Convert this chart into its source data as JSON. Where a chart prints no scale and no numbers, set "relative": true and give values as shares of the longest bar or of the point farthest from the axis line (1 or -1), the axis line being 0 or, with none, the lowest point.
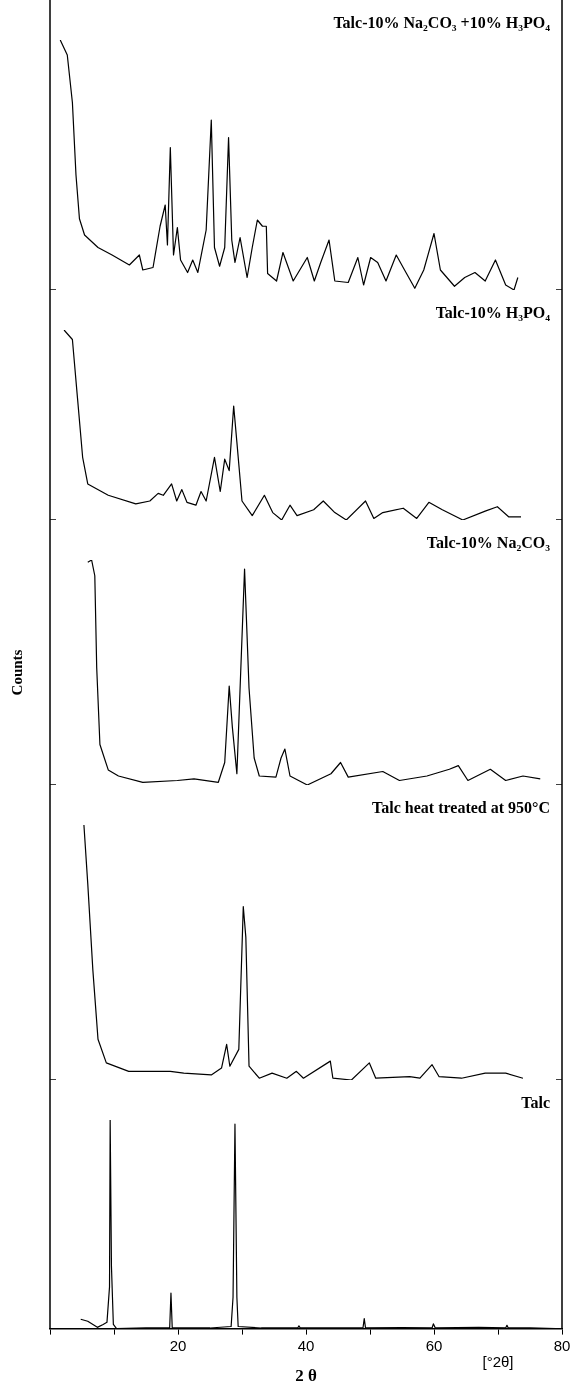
{
  "chart_data": [
    {
      "type": "line",
      "title": "Talc-10% Na₂CO₃ +10% H₃PO₄",
      "relative": true,
      "color": "#000000",
      "xlim": [
        0,
        80
      ],
      "tick_labels": false,
      "x": [
        1.6,
        2.7,
        3.5,
        4.06,
        4.6,
        5.4,
        7.5,
        9.7,
        12.4,
        13.96,
        14.5,
        16.1,
        17.2,
        18.0,
        18.35,
        18.8,
        19.3,
        19.9,
        20.4,
        21.5,
        22.3,
        23.1,
        24.4,
        25.2,
        25.7,
        26.5,
        27.3,
        27.9,
        28.4,
        28.9,
        29.7,
        30.8,
        31.6,
        32.4,
        33.2,
        33.8,
        34.0,
        35.4,
        36.4,
        38.0,
        40.2,
        41.3,
        42.3,
        43.6,
        44.5,
        46.6,
        48.1,
        49.0,
        50.1,
        51.2,
        52.5,
        54.1,
        55.4,
        57.0,
        58.4,
        60.0,
        61.0,
        63.2,
        64.8,
        66.4,
        68.0,
        69.6,
        71.2,
        72.5,
        73.1
      ],
      "values": [
        1.0,
        0.94,
        0.75,
        0.46,
        0.285,
        0.22,
        0.17,
        0.14,
        0.1,
        0.14,
        0.08,
        0.09,
        0.255,
        0.34,
        0.18,
        0.57,
        0.14,
        0.25,
        0.12,
        0.07,
        0.12,
        0.07,
        0.24,
        0.68,
        0.17,
        0.095,
        0.17,
        0.61,
        0.2,
        0.11,
        0.21,
        0.05,
        0.17,
        0.28,
        0.255,
        0.255,
        0.066,
        0.036,
        0.15,
        0.036,
        0.13,
        0.036,
        0.11,
        0.2,
        0.036,
        0.03,
        0.13,
        0.02,
        0.13,
        0.11,
        0.036,
        0.14,
        0.08,
        0.007,
        0.08,
        0.226,
        0.08,
        0.015,
        0.05,
        0.07,
        0.036,
        0.12,
        0.02,
        0,
        0.05
      ]
    },
    {
      "type": "line",
      "title": "Talc-10% H₃PO₄",
      "relative": true,
      "color": "#000000",
      "xlim": [
        0,
        80
      ],
      "tick_labels": false,
      "x": [
        2.2,
        3.5,
        4.3,
        5.1,
        5.9,
        9.1,
        13.4,
        15.6,
        16.9,
        17.7,
        19.0,
        19.8,
        20.6,
        21.4,
        22.8,
        23.6,
        24.4,
        25.7,
        26.6,
        27.3,
        28.0,
        28.7,
        29.2,
        30.0,
        31.6,
        33.5,
        34.8,
        36.2,
        37.5,
        38.6,
        41.2,
        42.7,
        44.5,
        46.3,
        49.3,
        50.6,
        52.0,
        55.2,
        57.3,
        59.2,
        61.3,
        64.5,
        68.0,
        69.9,
        71.7,
        73.6
      ],
      "values": [
        1.0,
        0.95,
        0.64,
        0.33,
        0.19,
        0.13,
        0.085,
        0.1,
        0.14,
        0.13,
        0.19,
        0.1,
        0.16,
        0.093,
        0.078,
        0.15,
        0.1,
        0.33,
        0.15,
        0.32,
        0.26,
        0.6,
        0.41,
        0.1,
        0.023,
        0.13,
        0.039,
        0,
        0.078,
        0.023,
        0.054,
        0.1,
        0.039,
        0,
        0.1,
        0.008,
        0.039,
        0.062,
        0.008,
        0.093,
        0.054,
        0,
        0.047,
        0.07,
        0.016,
        0.016
      ]
    },
    {
      "type": "line",
      "title": "Talc-10% Na₂CO₃",
      "ylabel": "Counts",
      "relative": true,
      "color": "#000000",
      "xlim": [
        0,
        80
      ],
      "tick_labels": false,
      "x": [
        5.9,
        6.5,
        7.0,
        7.3,
        7.8,
        9.1,
        10.7,
        14.5,
        19.9,
        22.5,
        26.3,
        27.3,
        28.0,
        28.5,
        29.2,
        30.4,
        31.1,
        31.9,
        32.7,
        35.3,
        36.1,
        36.7,
        37.5,
        40.2,
        43.9,
        45.4,
        46.6,
        52.0,
        54.6,
        58.9,
        62.4,
        63.8,
        65.3,
        68.8,
        71.2,
        73.9,
        76.6
      ],
      "values": [
        0.99,
        1.0,
        0.93,
        0.52,
        0.18,
        0.067,
        0.04,
        0.012,
        0.02,
        0.027,
        0.012,
        0.1,
        0.44,
        0.255,
        0.05,
        0.96,
        0.43,
        0.12,
        0.04,
        0.035,
        0.12,
        0.16,
        0.04,
        0,
        0.05,
        0.1,
        0.035,
        0.06,
        0.02,
        0.04,
        0.07,
        0.086,
        0.02,
        0.07,
        0.02,
        0.04,
        0.027
      ]
    },
    {
      "type": "line",
      "title": "Talc heat treated at 950°C",
      "relative": true,
      "color": "#000000",
      "xlim": [
        0,
        80
      ],
      "tick_labels": false,
      "x": [
        5.3,
        5.9,
        6.7,
        7.5,
        8.8,
        12.3,
        18.8,
        20.9,
        25.2,
        26.8,
        27.6,
        28.1,
        29.5,
        30.2,
        30.6,
        31.1,
        32.7,
        34.7,
        37.0,
        38.5,
        39.6,
        43.8,
        44.2,
        47.1,
        49.9,
        50.9,
        56.2,
        57.8,
        59.7,
        60.8,
        64.3,
        68.0,
        71.2,
        73.9
      ],
      "values": [
        1.0,
        0.77,
        0.43,
        0.16,
        0.067,
        0.034,
        0.034,
        0.027,
        0.02,
        0.047,
        0.14,
        0.054,
        0.12,
        0.68,
        0.56,
        0.054,
        0.007,
        0.027,
        0.007,
        0.034,
        0.007,
        0.074,
        0.007,
        0,
        0.067,
        0.007,
        0.013,
        0.007,
        0.06,
        0.013,
        0.007,
        0.027,
        0.027,
        0.007
      ]
    },
    {
      "type": "line",
      "title": "Talc",
      "xlabel": "2 θ",
      "annotations": [
        "[°2θ]"
      ],
      "relative": true,
      "color": "#000000",
      "xlim": [
        0,
        80
      ],
      "tick_labels": "x",
      "xticks": [
        {
          "value": 0,
          "label": null
        },
        {
          "value": 10,
          "label": null
        },
        20,
        {
          "value": 30,
          "label": null
        },
        40,
        {
          "value": 50,
          "label": null
        },
        60,
        {
          "value": 70,
          "label": null
        },
        80
      ],
      "x": [
        4.8,
        5.9,
        7.4,
        8.3,
        8.9,
        9.3,
        9.4,
        9.6,
        9.9,
        10.4,
        15,
        18.7,
        18.9,
        19.1,
        25,
        28.3,
        28.6,
        28.9,
        29.2,
        29.4,
        33,
        38.7,
        38.9,
        39.1,
        45,
        48.9,
        49.1,
        49.3,
        55,
        59.7,
        59.9,
        60.2,
        67,
        71.2,
        71.4,
        71.6,
        75,
        79
      ],
      "values": [
        0.045,
        0.035,
        0.006,
        0.02,
        0.03,
        0.2,
        1.0,
        0.3,
        0.02,
        0,
        0.003,
        0.003,
        0.17,
        0.003,
        0.003,
        0.01,
        0.15,
        0.98,
        0.15,
        0.01,
        0.003,
        0.003,
        0.013,
        0.003,
        0.003,
        0.003,
        0.048,
        0.003,
        0.005,
        0.003,
        0.023,
        0.003,
        0.006,
        0.003,
        0.016,
        0.003,
        0.003,
        0
      ]
    }
  ]
}
